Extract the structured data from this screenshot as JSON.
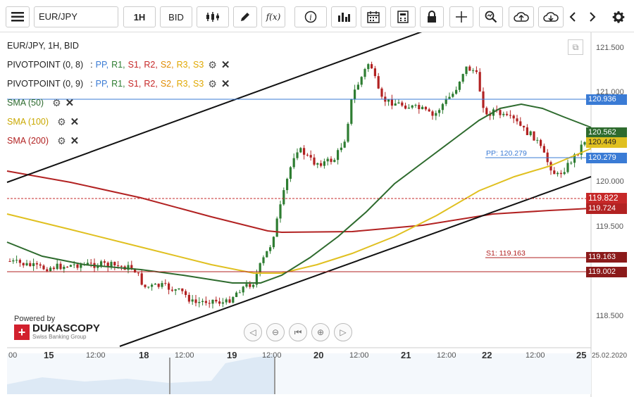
{
  "toolbar": {
    "menu_icon": "hamburger-icon",
    "symbol": "EUR/JPY",
    "timeframe": "1H",
    "price_side": "BID",
    "icons": [
      "candle-type-icon",
      "pencil-icon",
      "function-icon",
      "info-icon",
      "volume-bars-icon",
      "calendar-icon",
      "calculator-icon",
      "lock-icon",
      "crosshair-icon",
      "zoom-icon",
      "cloud-upload-icon",
      "cloud-download-icon",
      "chevron-left-icon",
      "chevron-right-icon",
      "gear-icon"
    ],
    "function_label": "f(x)"
  },
  "legend": {
    "title": "EUR/JPY, 1H, BID",
    "pivot1": {
      "name": "PIVOTPOINT (0, 8)",
      "sep": ":",
      "levels": [
        "PP,",
        "R1,",
        "S1,",
        "R2,",
        "S2,",
        "R3,",
        "S3"
      ]
    },
    "pivot2": {
      "name": "PIVOTPOINT (0, 9)",
      "sep": ":",
      "levels": [
        "PP,",
        "R1,",
        "S1,",
        "R2,",
        "S2,",
        "R3,",
        "S3"
      ]
    },
    "sma50": "SMA (50)",
    "sma100": "SMA (100)",
    "sma200": "SMA (200)"
  },
  "colors": {
    "pp": "#3a7bd5",
    "r1": "#2e7d32",
    "s1": "#c62828",
    "r2": "#c62828",
    "s2": "#e08b00",
    "r3": "#e0a800",
    "s3": "#e0a800",
    "sma50": "#2e6b2e",
    "sma100": "#e0c020",
    "sma200": "#b22222",
    "candle_up": "#2e7d32",
    "candle_down": "#b22222"
  },
  "price_tags": {
    "blue_line": "120.936",
    "sma50": "120.562",
    "sma100": "120.449",
    "pp": "120.279",
    "current": "119.822",
    "sma200": "119.724",
    "s1": "119.163",
    "red_line": "119.002"
  },
  "annotations": {
    "pp": "PP: 120.279",
    "s1": "S1: 119.163"
  },
  "y_ticks": [
    "121.500",
    "121.000",
    "120.000",
    "119.500",
    "118.500"
  ],
  "x_ticks": [
    "00",
    "15",
    "12:00",
    "18",
    "12:00",
    "19",
    "12:00",
    "20",
    "12:00",
    "21",
    "12:00",
    "22",
    "12:00",
    "25",
    "25.02.2020"
  ],
  "branding": {
    "powered_by": "Powered by",
    "name": "DUKASCOPY",
    "sub": "Swiss Banking Group",
    "logo_glyph": "+"
  },
  "nav_icons": [
    "scroll-left-icon",
    "zoom-out-icon",
    "reset-icon",
    "zoom-in-icon",
    "scroll-right-icon"
  ]
}
